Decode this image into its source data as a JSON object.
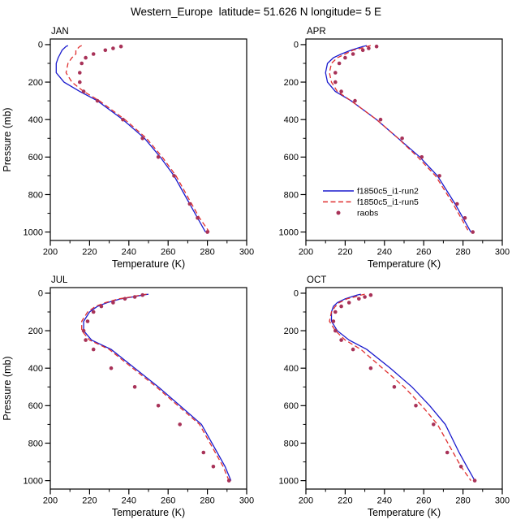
{
  "title": "Western_Europe  latitude= 51.626 N longitude= 5 E",
  "colors": {
    "axis": "#000000",
    "run2": "#1a1acd",
    "run5": "#e03030",
    "raobs": "#a83258"
  },
  "chart_data": [
    {
      "type": "line",
      "panel_label": "JAN",
      "xlabel": "Temperature (K)",
      "ylabel": "Pressure (mb)",
      "xlim": [
        200,
        300
      ],
      "xticks": [
        200,
        220,
        240,
        260,
        280,
        300
      ],
      "x_minor_step": 10,
      "ylim": [
        0,
        1000
      ],
      "yticks": [
        0,
        200,
        400,
        600,
        800,
        1000
      ],
      "y_minor_step": 100,
      "y_inverted": true,
      "show_ylabel": true,
      "show_legend": false,
      "series": [
        {
          "name": "f1850c5_i1-run2",
          "style": "solid",
          "color_key": "run2",
          "pressure": [
            5,
            10,
            20,
            30,
            50,
            70,
            100,
            150,
            200,
            250,
            300,
            400,
            500,
            600,
            700,
            850,
            925,
            1000
          ],
          "temperature": [
            209,
            208,
            207,
            206,
            205,
            204,
            203,
            203,
            207,
            215,
            224,
            237,
            248,
            256,
            263,
            271,
            275,
            279
          ]
        },
        {
          "name": "f1850c5_i1-run5",
          "style": "dashed",
          "color_key": "run5",
          "pressure": [
            5,
            10,
            20,
            30,
            50,
            70,
            100,
            150,
            200,
            250,
            300,
            400,
            500,
            600,
            700,
            850,
            925,
            1000
          ],
          "temperature": [
            216,
            215,
            214,
            213,
            213,
            211,
            209,
            208,
            211,
            217,
            225,
            238,
            249,
            257,
            264,
            272,
            276,
            281
          ]
        },
        {
          "name": "raobs",
          "style": "dots",
          "color_key": "raobs",
          "pressure": [
            10,
            20,
            30,
            50,
            70,
            100,
            150,
            200,
            250,
            300,
            400,
            500,
            600,
            700,
            850,
            925,
            1000
          ],
          "temperature": [
            236,
            232,
            228,
            222,
            218,
            216,
            215,
            215,
            217,
            224,
            237,
            247,
            255,
            263,
            271,
            275,
            280
          ]
        }
      ]
    },
    {
      "type": "line",
      "panel_label": "APR",
      "xlabel": "Temperature (K)",
      "ylabel": "Pressure (mb)",
      "xlim": [
        200,
        300
      ],
      "xticks": [
        200,
        220,
        240,
        260,
        280,
        300
      ],
      "x_minor_step": 10,
      "ylim": [
        0,
        1000
      ],
      "yticks": [
        0,
        200,
        400,
        600,
        800,
        1000
      ],
      "y_minor_step": 100,
      "y_inverted": true,
      "show_ylabel": false,
      "show_legend": true,
      "series": [
        {
          "name": "f1850c5_i1-run2",
          "style": "solid",
          "color_key": "run2",
          "pressure": [
            5,
            10,
            20,
            30,
            50,
            70,
            100,
            150,
            200,
            250,
            300,
            400,
            500,
            600,
            700,
            850,
            925,
            1000
          ],
          "temperature": [
            231,
            229,
            226,
            223,
            218,
            214,
            211,
            210,
            211,
            215,
            223,
            236,
            247,
            258,
            267,
            276,
            280,
            284
          ]
        },
        {
          "name": "f1850c5_i1-run5",
          "style": "dashed",
          "color_key": "run5",
          "pressure": [
            5,
            10,
            20,
            30,
            50,
            70,
            100,
            150,
            200,
            250,
            300,
            400,
            500,
            600,
            700,
            850,
            925,
            1000
          ],
          "temperature": [
            233,
            231,
            228,
            224,
            220,
            216,
            213,
            212,
            213,
            216,
            223,
            236,
            247,
            257,
            266,
            275,
            279,
            283
          ]
        },
        {
          "name": "raobs",
          "style": "dots",
          "color_key": "raobs",
          "pressure": [
            10,
            20,
            30,
            50,
            70,
            100,
            150,
            200,
            250,
            300,
            400,
            500,
            600,
            700,
            850,
            925,
            1000
          ],
          "temperature": [
            236,
            232,
            229,
            224,
            220,
            217,
            215,
            215,
            218,
            225,
            238,
            249,
            259,
            268,
            277,
            281,
            285
          ]
        }
      ]
    },
    {
      "type": "line",
      "panel_label": "JUL",
      "xlabel": "Temperature (K)",
      "ylabel": "Pressure (mb)",
      "xlim": [
        200,
        300
      ],
      "xticks": [
        200,
        220,
        240,
        260,
        280,
        300
      ],
      "x_minor_step": 10,
      "ylim": [
        0,
        1000
      ],
      "yticks": [
        0,
        200,
        400,
        600,
        800,
        1000
      ],
      "y_minor_step": 100,
      "y_inverted": true,
      "show_ylabel": true,
      "show_legend": false,
      "series": [
        {
          "name": "f1850c5_i1-run2",
          "style": "solid",
          "color_key": "run2",
          "pressure": [
            5,
            10,
            20,
            30,
            50,
            70,
            100,
            150,
            200,
            250,
            300,
            400,
            500,
            600,
            700,
            850,
            925,
            1000
          ],
          "temperature": [
            250,
            247,
            242,
            236,
            229,
            224,
            220,
            217,
            217,
            221,
            231,
            243,
            255,
            266,
            277,
            285,
            289,
            292
          ]
        },
        {
          "name": "f1850c5_i1-run5",
          "style": "dashed",
          "color_key": "run5",
          "pressure": [
            5,
            10,
            20,
            30,
            50,
            70,
            100,
            150,
            200,
            250,
            300,
            400,
            500,
            600,
            700,
            850,
            925,
            1000
          ],
          "temperature": [
            249,
            246,
            241,
            235,
            228,
            223,
            219,
            216,
            216,
            220,
            230,
            242,
            254,
            265,
            276,
            284,
            288,
            291
          ]
        },
        {
          "name": "raobs",
          "style": "dots",
          "color_key": "raobs",
          "pressure": [
            10,
            20,
            30,
            50,
            70,
            100,
            150,
            200,
            250,
            300,
            400,
            500,
            600,
            700,
            850,
            925,
            1000
          ],
          "temperature": [
            247,
            243,
            238,
            232,
            226,
            222,
            219,
            217,
            218,
            222,
            231,
            243,
            255,
            266,
            278,
            283,
            291
          ]
        }
      ]
    },
    {
      "type": "line",
      "panel_label": "OCT",
      "xlabel": "Temperature (K)",
      "ylabel": "Pressure (mb)",
      "xlim": [
        200,
        300
      ],
      "xticks": [
        200,
        220,
        240,
        260,
        280,
        300
      ],
      "x_minor_step": 10,
      "ylim": [
        0,
        1000
      ],
      "yticks": [
        0,
        200,
        400,
        600,
        800,
        1000
      ],
      "y_minor_step": 100,
      "y_inverted": true,
      "show_ylabel": false,
      "show_legend": false,
      "series": [
        {
          "name": "f1850c5_i1-run2",
          "style": "solid",
          "color_key": "run2",
          "pressure": [
            5,
            10,
            20,
            30,
            50,
            70,
            100,
            150,
            200,
            250,
            300,
            400,
            500,
            600,
            700,
            850,
            925,
            1000
          ],
          "temperature": [
            228,
            226,
            223,
            220,
            216,
            214,
            213,
            213,
            216,
            222,
            231,
            243,
            254,
            263,
            271,
            278,
            282,
            286
          ]
        },
        {
          "name": "f1850c5_i1-run5",
          "style": "dashed",
          "color_key": "run5",
          "pressure": [
            5,
            10,
            20,
            30,
            50,
            70,
            100,
            150,
            200,
            250,
            300,
            400,
            500,
            600,
            700,
            850,
            925,
            1000
          ],
          "temperature": [
            230,
            228,
            225,
            221,
            217,
            215,
            213,
            212,
            215,
            220,
            228,
            239,
            250,
            259,
            267,
            275,
            279,
            284
          ]
        },
        {
          "name": "raobs",
          "style": "dots",
          "color_key": "raobs",
          "pressure": [
            10,
            20,
            30,
            50,
            70,
            100,
            150,
            200,
            250,
            300,
            400,
            500,
            600,
            700,
            850,
            925,
            1000
          ],
          "temperature": [
            233,
            230,
            227,
            222,
            218,
            215,
            214,
            215,
            218,
            224,
            233,
            245,
            256,
            265,
            272,
            279,
            286
          ]
        }
      ]
    }
  ]
}
